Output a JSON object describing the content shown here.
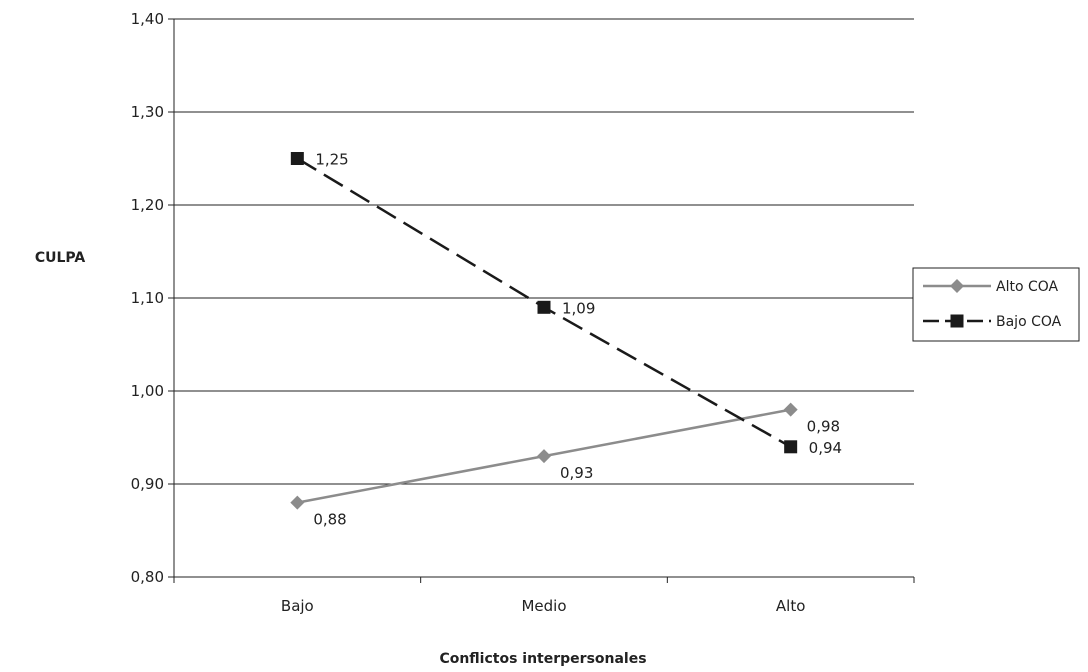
{
  "chart_data": {
    "type": "line",
    "title": "",
    "xlabel": "Conflictos interpersonales",
    "ylabel": "CULPA",
    "categories": [
      "Bajo",
      "Medio",
      "Alto"
    ],
    "ylim": [
      0.8,
      1.4
    ],
    "yticks": [
      "0,80",
      "0,90",
      "1,00",
      "1,10",
      "1,20",
      "1,30",
      "1,40"
    ],
    "grid": "horizontal",
    "legend_position": "right",
    "series": [
      {
        "name": "Alto COA",
        "values": [
          0.88,
          0.93,
          0.98
        ],
        "labels": [
          "0,88",
          "0,93",
          "0,98"
        ],
        "color": "#8c8c8c",
        "line_style": "solid",
        "marker": "diamond"
      },
      {
        "name": "Bajo COA",
        "values": [
          1.25,
          1.09,
          0.94
        ],
        "labels": [
          "1,25",
          "1,09",
          "0,94"
        ],
        "color": "#1a1a1a",
        "line_style": "dashed",
        "marker": "square"
      }
    ]
  }
}
